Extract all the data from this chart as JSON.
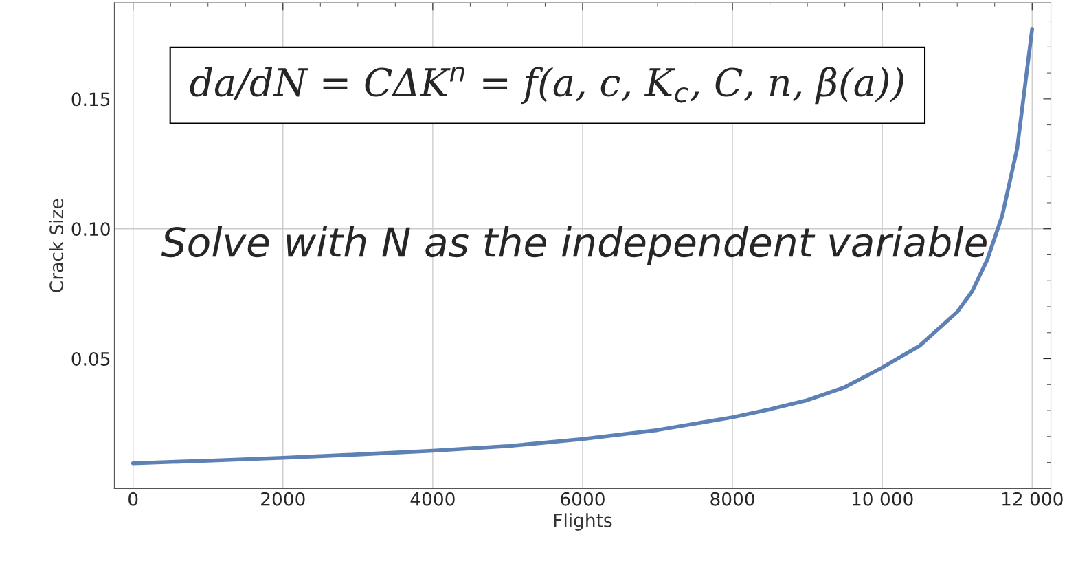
{
  "chart_data": {
    "type": "line",
    "xlabel": "Flights",
    "ylabel": "Crack Size",
    "x": [
      0,
      1000,
      2000,
      3000,
      4000,
      5000,
      6000,
      7000,
      8000,
      8500,
      9000,
      9500,
      10000,
      10500,
      11000,
      11200,
      11400,
      11600,
      11800,
      12000
    ],
    "series": [
      {
        "color": "#5e81b5",
        "values": [
          0.0097,
          0.0107,
          0.0118,
          0.0131,
          0.0145,
          0.0163,
          0.019,
          0.0225,
          0.0274,
          0.0305,
          0.034,
          0.039,
          0.0466,
          0.055,
          0.068,
          0.076,
          0.088,
          0.105,
          0.131,
          0.177
        ]
      }
    ],
    "xlim": [
      -250,
      12250
    ],
    "ylim": [
      0,
      0.187
    ],
    "xticks": [
      0,
      2000,
      4000,
      6000,
      8000,
      {
        "value": 10000,
        "label": "10 000"
      },
      {
        "value": 12000,
        "label": "12 000"
      }
    ],
    "yticks": [
      {
        "value": 0.05,
        "label": "0.05"
      },
      {
        "value": 0.1,
        "label": "0.10"
      },
      {
        "value": 0.15,
        "label": "0.15"
      }
    ],
    "grid": "x",
    "ref_lines": [
      {
        "axis": "y",
        "value": 0.1,
        "color": "#cccccc"
      }
    ],
    "annotations": [
      "da/dN = CΔK$^{n}$ = f(a, c, K$_{c}$, C, n, β(a))",
      "Solve with N as the independent variable"
    ]
  }
}
